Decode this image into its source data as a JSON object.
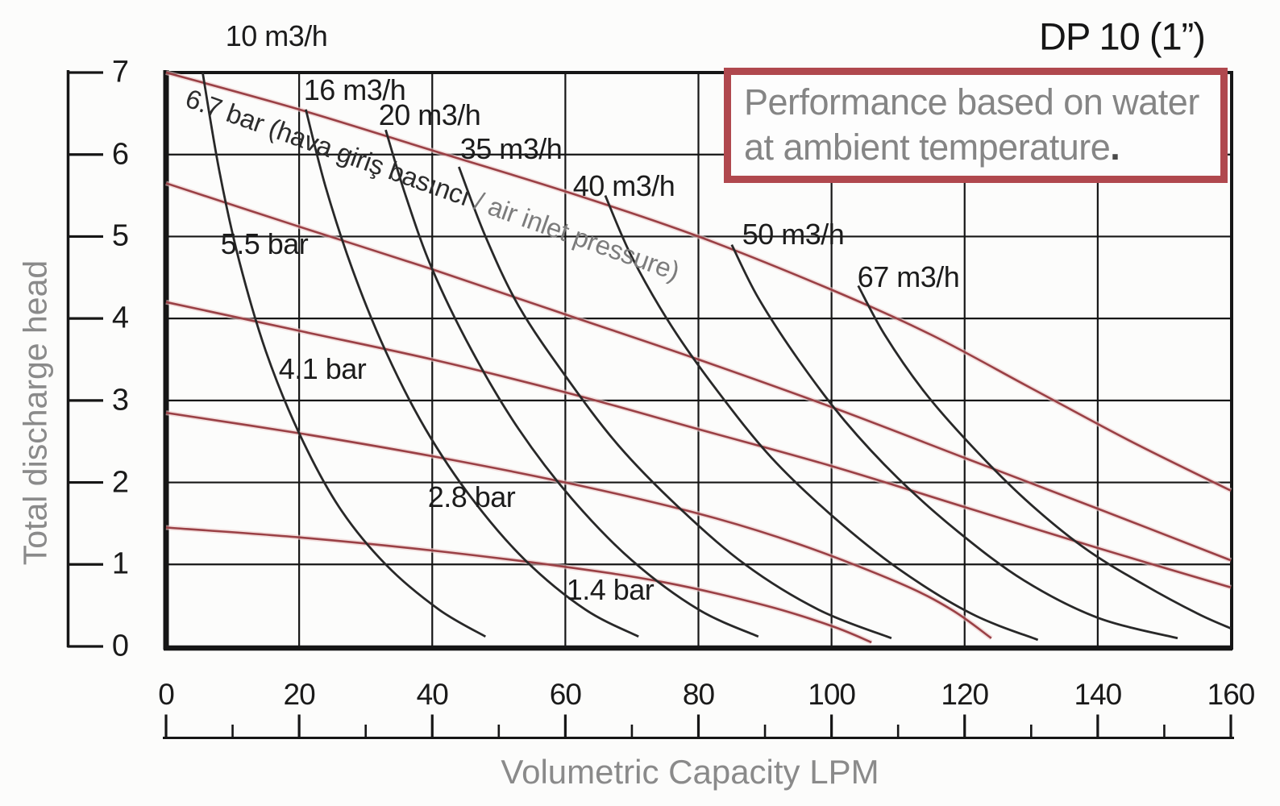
{
  "header": {
    "title": "DP 10 (1”)",
    "note_line1": "Performance based on water",
    "note_line2": "at ambient temperature",
    "note_period": "."
  },
  "axes": {
    "x": {
      "title": "Volumetric Capacity LPM",
      "min": 0,
      "max": 160,
      "tick_step": 20,
      "minor_step": 10,
      "tick_labels": [
        "0",
        "20",
        "40",
        "60",
        "80",
        "100",
        "120",
        "140",
        "160"
      ]
    },
    "y": {
      "title": "Total discharge head",
      "min": 0,
      "max": 7,
      "tick_step": 1,
      "tick_labels": [
        "7",
        "6",
        "5",
        "4",
        "3",
        "2",
        "1",
        "0"
      ]
    }
  },
  "colors": {
    "curve_black": "#282828",
    "curve_red": "#9a4045",
    "curve_red_halo": "#edc9c9",
    "grid": "#161616",
    "note_border": "#b0484e",
    "muted_text": "#8a8a8a"
  },
  "chart_data": {
    "type": "line",
    "title": "DP 10 (1”)",
    "xlabel": "Volumetric Capacity LPM",
    "ylabel": "Total discharge head",
    "xlim": [
      0,
      160
    ],
    "ylim": [
      0,
      7
    ],
    "grid": true,
    "legend": "none",
    "pressure_label": {
      "dark": "6.7 bar (hava giriş basıncı",
      "light": " / air inlet pressure)"
    },
    "labels": [
      {
        "text": "10 m3/h"
      },
      {
        "text": "16 m3/h"
      },
      {
        "text": "20 m3/h"
      },
      {
        "text": "35 m3/h"
      },
      {
        "text": "40 m3/h"
      },
      {
        "text": "50 m3/h"
      },
      {
        "text": "67 m3/h"
      },
      {
        "text": "5.5 bar"
      },
      {
        "text": "4.1 bar"
      },
      {
        "text": "2.8 bar"
      },
      {
        "text": "1.4 bar"
      }
    ],
    "series": [
      {
        "name": "6.7 bar",
        "unit": "bar",
        "value": 6.7,
        "color": "#9a4045",
        "points": [
          [
            0,
            7.0
          ],
          [
            20,
            6.55
          ],
          [
            40,
            6.05
          ],
          [
            60,
            5.55
          ],
          [
            80,
            5.0
          ],
          [
            100,
            4.35
          ],
          [
            115,
            3.8
          ],
          [
            130,
            3.15
          ],
          [
            145,
            2.5
          ],
          [
            160,
            1.9
          ]
        ]
      },
      {
        "name": "5.5 bar",
        "unit": "bar",
        "value": 5.5,
        "color": "#9a4045",
        "points": [
          [
            0,
            5.65
          ],
          [
            20,
            5.12
          ],
          [
            40,
            4.6
          ],
          [
            60,
            4.05
          ],
          [
            80,
            3.5
          ],
          [
            100,
            2.92
          ],
          [
            120,
            2.3
          ],
          [
            140,
            1.68
          ],
          [
            160,
            1.05
          ]
        ]
      },
      {
        "name": "4.1 bar",
        "unit": "bar",
        "value": 4.1,
        "color": "#9a4045",
        "points": [
          [
            0,
            4.2
          ],
          [
            20,
            3.85
          ],
          [
            40,
            3.5
          ],
          [
            60,
            3.1
          ],
          [
            80,
            2.65
          ],
          [
            100,
            2.2
          ],
          [
            120,
            1.7
          ],
          [
            140,
            1.2
          ],
          [
            160,
            0.72
          ]
        ]
      },
      {
        "name": "2.8 bar",
        "unit": "bar",
        "value": 2.8,
        "color": "#9a4045",
        "points": [
          [
            0,
            2.85
          ],
          [
            20,
            2.6
          ],
          [
            40,
            2.32
          ],
          [
            60,
            2.0
          ],
          [
            80,
            1.62
          ],
          [
            95,
            1.25
          ],
          [
            110,
            0.78
          ],
          [
            118,
            0.45
          ],
          [
            124,
            0.1
          ]
        ]
      },
      {
        "name": "1.4 bar",
        "unit": "bar",
        "value": 1.4,
        "color": "#9a4045",
        "points": [
          [
            0,
            1.45
          ],
          [
            20,
            1.33
          ],
          [
            40,
            1.17
          ],
          [
            60,
            0.97
          ],
          [
            75,
            0.78
          ],
          [
            90,
            0.5
          ],
          [
            100,
            0.25
          ],
          [
            106,
            0.05
          ]
        ]
      },
      {
        "name": "10 m3/h",
        "unit": "m3/h",
        "value": 10,
        "color": "#282828",
        "points": [
          [
            5.5,
            7.0
          ],
          [
            8,
            5.8
          ],
          [
            11,
            4.7
          ],
          [
            15,
            3.6
          ],
          [
            20,
            2.6
          ],
          [
            26,
            1.7
          ],
          [
            33,
            1.0
          ],
          [
            41,
            0.45
          ],
          [
            48,
            0.12
          ]
        ]
      },
      {
        "name": "16 m3/h",
        "unit": "m3/h",
        "value": 16,
        "color": "#282828",
        "points": [
          [
            21,
            6.55
          ],
          [
            24,
            5.6
          ],
          [
            28,
            4.6
          ],
          [
            33,
            3.6
          ],
          [
            39,
            2.65
          ],
          [
            46,
            1.8
          ],
          [
            54,
            1.05
          ],
          [
            63,
            0.45
          ],
          [
            71,
            0.12
          ]
        ]
      },
      {
        "name": "20 m3/h",
        "unit": "m3/h",
        "value": 20,
        "color": "#282828",
        "points": [
          [
            33,
            6.3
          ],
          [
            36,
            5.5
          ],
          [
            40,
            4.6
          ],
          [
            46,
            3.6
          ],
          [
            53,
            2.65
          ],
          [
            61,
            1.8
          ],
          [
            70,
            1.05
          ],
          [
            80,
            0.45
          ],
          [
            89,
            0.12
          ]
        ]
      },
      {
        "name": "35 m3/h",
        "unit": "m3/h",
        "value": 35,
        "color": "#282828",
        "points": [
          [
            44,
            5.85
          ],
          [
            48,
            5.0
          ],
          [
            53,
            4.15
          ],
          [
            60,
            3.3
          ],
          [
            68,
            2.45
          ],
          [
            77,
            1.7
          ],
          [
            87,
            1.0
          ],
          [
            98,
            0.45
          ],
          [
            109,
            0.1
          ]
        ]
      },
      {
        "name": "40 m3/h",
        "unit": "m3/h",
        "value": 40,
        "color": "#282828",
        "points": [
          [
            66,
            5.5
          ],
          [
            70,
            4.75
          ],
          [
            76,
            3.9
          ],
          [
            83,
            3.1
          ],
          [
            91,
            2.3
          ],
          [
            100,
            1.6
          ],
          [
            110,
            0.95
          ],
          [
            121,
            0.4
          ],
          [
            131,
            0.08
          ]
        ]
      },
      {
        "name": "50 m3/h",
        "unit": "m3/h",
        "value": 50,
        "color": "#282828",
        "points": [
          [
            85,
            4.9
          ],
          [
            89,
            4.25
          ],
          [
            95,
            3.5
          ],
          [
            102,
            2.75
          ],
          [
            110,
            2.05
          ],
          [
            119,
            1.4
          ],
          [
            129,
            0.8
          ],
          [
            140,
            0.35
          ],
          [
            152,
            0.1
          ]
        ]
      },
      {
        "name": "67 m3/h",
        "unit": "m3/h",
        "value": 67,
        "color": "#282828",
        "points": [
          [
            104,
            4.4
          ],
          [
            108,
            3.8
          ],
          [
            114,
            3.1
          ],
          [
            121,
            2.45
          ],
          [
            129,
            1.8
          ],
          [
            138,
            1.2
          ],
          [
            147,
            0.75
          ],
          [
            155,
            0.4
          ],
          [
            160,
            0.22
          ]
        ]
      }
    ]
  }
}
